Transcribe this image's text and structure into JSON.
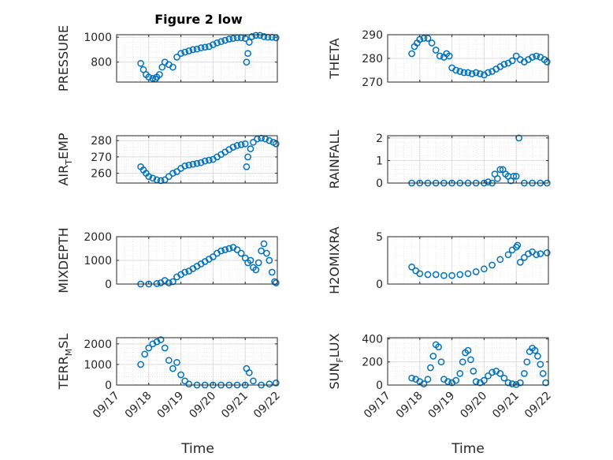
{
  "figure": {
    "title": "Figure 2 low",
    "xlabel": "Time",
    "x_ticks": [
      "09/17",
      "09/18",
      "09/19",
      "09/20",
      "09/21",
      "09/22"
    ],
    "marker_color": "#0072BD"
  },
  "chart_data": [
    {
      "type": "scatter",
      "ylabel": "PRESSURE",
      "ylim": [
        640,
        1020
      ],
      "yticks": [
        800,
        1000
      ],
      "grid": true,
      "x": [
        "09/17 18:00",
        "09/17 20:00",
        "09/17 22:00",
        "09/18 00:00",
        "09/18 03:00",
        "09/18 05:00",
        "09/18 06:00",
        "09/18 08:00",
        "09/18 10:00",
        "09/18 12:00",
        "09/18 15:00",
        "09/18 18:00",
        "09/18 21:00",
        "09/19 00:00",
        "09/19 03:00",
        "09/19 06:00",
        "09/19 09:00",
        "09/19 12:00",
        "09/19 15:00",
        "09/19 18:00",
        "09/19 21:00",
        "09/20 00:00",
        "09/20 03:00",
        "09/20 06:00",
        "09/20 09:00",
        "09/20 12:00",
        "09/20 15:00",
        "09/20 18:00",
        "09/20 21:00",
        "09/21 00:00",
        "09/21 01:00",
        "09/21 02:00",
        "09/21 03:00",
        "09/21 05:00",
        "09/21 08:00",
        "09/21 11:00",
        "09/21 14:00",
        "09/21 17:00",
        "09/21 20:00",
        "09/21 23:00"
      ],
      "values": [
        790,
        740,
        700,
        680,
        670,
        665,
        680,
        700,
        760,
        800,
        780,
        760,
        840,
        870,
        880,
        890,
        900,
        905,
        915,
        920,
        925,
        940,
        955,
        965,
        975,
        985,
        990,
        995,
        995,
        990,
        800,
        870,
        960,
        1005,
        1015,
        1015,
        1005,
        1000,
        1000,
        995
      ]
    },
    {
      "type": "scatter",
      "ylabel": "THETA",
      "ylim": [
        270,
        290
      ],
      "yticks": [
        270,
        280,
        290
      ],
      "grid": true,
      "x": [
        "09/17 18:00",
        "09/17 20:00",
        "09/17 22:00",
        "09/18 00:00",
        "09/18 03:00",
        "09/18 06:00",
        "09/18 09:00",
        "09/18 12:00",
        "09/18 15:00",
        "09/18 18:00",
        "09/18 20:00",
        "09/18 22:00",
        "09/19 00:00",
        "09/19 03:00",
        "09/19 06:00",
        "09/19 09:00",
        "09/19 12:00",
        "09/19 15:00",
        "09/19 18:00",
        "09/19 21:00",
        "09/20 00:00",
        "09/20 03:00",
        "09/20 06:00",
        "09/20 09:00",
        "09/20 12:00",
        "09/20 15:00",
        "09/20 18:00",
        "09/20 21:00",
        "09/21 00:00",
        "09/21 03:00",
        "09/21 06:00",
        "09/21 09:00",
        "09/21 12:00",
        "09/21 15:00",
        "09/21 18:00",
        "09/21 21:00",
        "09/21 23:00"
      ],
      "values": [
        282,
        285,
        286.5,
        288,
        288.5,
        288.5,
        286.5,
        283.5,
        281,
        280.5,
        282,
        281,
        276,
        275,
        274.5,
        274,
        274,
        273.5,
        274,
        273.5,
        273,
        274,
        274.5,
        275.5,
        276.5,
        277.5,
        278,
        279,
        281,
        279.5,
        278.5,
        279.5,
        280.5,
        281,
        280.5,
        279.5,
        278.5
      ]
    },
    {
      "type": "scatter",
      "ylabel": "AIR_TEMP",
      "ylim": [
        254,
        283
      ],
      "yticks": [
        260,
        270,
        280
      ],
      "grid": true,
      "x": [
        "09/17 18:00",
        "09/17 20:00",
        "09/17 22:00",
        "09/18 00:00",
        "09/18 03:00",
        "09/18 06:00",
        "09/18 09:00",
        "09/18 12:00",
        "09/18 15:00",
        "09/18 18:00",
        "09/18 21:00",
        "09/19 00:00",
        "09/19 03:00",
        "09/19 06:00",
        "09/19 09:00",
        "09/19 12:00",
        "09/19 15:00",
        "09/19 18:00",
        "09/19 21:00",
        "09/20 00:00",
        "09/20 03:00",
        "09/20 06:00",
        "09/20 09:00",
        "09/20 12:00",
        "09/20 15:00",
        "09/20 18:00",
        "09/20 21:00",
        "09/21 00:00",
        "09/21 01:00",
        "09/21 02:00",
        "09/21 04:00",
        "09/21 06:00",
        "09/21 09:00",
        "09/21 12:00",
        "09/21 15:00",
        "09/21 18:00",
        "09/21 21:00",
        "09/21 23:00"
      ],
      "values": [
        264,
        262,
        260,
        258,
        257,
        256,
        255.5,
        256,
        258,
        260,
        261,
        263,
        264.5,
        265,
        265.5,
        266,
        266.5,
        267.5,
        268,
        268.5,
        270,
        271.5,
        273,
        274.5,
        276,
        277,
        277.5,
        278,
        264,
        270,
        275,
        279,
        281,
        281.5,
        281,
        280,
        279,
        278
      ]
    },
    {
      "type": "scatter",
      "ylabel": "RAINFALL",
      "ylim": [
        0,
        2.1
      ],
      "yticks": [
        0,
        1,
        2
      ],
      "grid": true,
      "x": [
        "09/17 18:00",
        "09/18 00:00",
        "09/18 06:00",
        "09/18 12:00",
        "09/18 18:00",
        "09/19 00:00",
        "09/19 06:00",
        "09/19 12:00",
        "09/19 18:00",
        "09/20 00:00",
        "09/20 03:00",
        "09/20 06:00",
        "09/20 08:00",
        "09/20 10:00",
        "09/20 12:00",
        "09/20 14:00",
        "09/20 16:00",
        "09/20 18:00",
        "09/20 20:00",
        "09/20 22:00",
        "09/21 00:00",
        "09/21 02:00",
        "09/21 06:00",
        "09/21 12:00",
        "09/21 18:00",
        "09/21 23:00"
      ],
      "values": [
        0,
        0,
        0,
        0,
        0,
        0,
        0,
        0,
        0,
        0,
        0.05,
        0,
        0.4,
        0.2,
        0.6,
        0.6,
        0.4,
        0.3,
        0.1,
        0.3,
        0.3,
        2.0,
        0,
        0,
        0,
        0
      ]
    },
    {
      "type": "scatter",
      "ylabel": "MIXDEPTH",
      "ylim": [
        0,
        2000
      ],
      "yticks": [
        0,
        1000,
        2000
      ],
      "grid": true,
      "x": [
        "09/17 18:00",
        "09/18 00:00",
        "09/18 06:00",
        "09/18 09:00",
        "09/18 12:00",
        "09/18 15:00",
        "09/18 18:00",
        "09/18 21:00",
        "09/19 00:00",
        "09/19 03:00",
        "09/19 06:00",
        "09/19 09:00",
        "09/19 12:00",
        "09/19 15:00",
        "09/19 18:00",
        "09/19 21:00",
        "09/20 00:00",
        "09/20 03:00",
        "09/20 06:00",
        "09/20 09:00",
        "09/20 12:00",
        "09/20 15:00",
        "09/20 18:00",
        "09/20 21:00",
        "09/21 00:00",
        "09/21 02:00",
        "09/21 04:00",
        "09/21 06:00",
        "09/21 08:00",
        "09/21 10:00",
        "09/21 12:00",
        "09/21 14:00",
        "09/21 16:00",
        "09/21 18:00",
        "09/21 20:00",
        "09/21 22:00",
        "09/21 23:00"
      ],
      "values": [
        0,
        0,
        20,
        50,
        150,
        50,
        100,
        300,
        400,
        500,
        550,
        650,
        750,
        850,
        950,
        1050,
        1150,
        1300,
        1400,
        1450,
        1500,
        1550,
        1450,
        1300,
        1100,
        900,
        1000,
        700,
        600,
        900,
        1400,
        1700,
        1300,
        1000,
        500,
        100,
        50
      ]
    },
    {
      "type": "scatter",
      "ylabel": "H2OMIXRA",
      "ylim": [
        0,
        5
      ],
      "yticks": [
        0,
        5
      ],
      "grid": true,
      "x": [
        "09/17 18:00",
        "09/17 21:00",
        "09/18 00:00",
        "09/18 06:00",
        "09/18 12:00",
        "09/18 18:00",
        "09/19 00:00",
        "09/19 06:00",
        "09/19 12:00",
        "09/19 18:00",
        "09/20 00:00",
        "09/20 06:00",
        "09/20 12:00",
        "09/20 18:00",
        "09/20 21:00",
        "09/21 00:00",
        "09/21 01:00",
        "09/21 03:00",
        "09/21 06:00",
        "09/21 09:00",
        "09/21 12:00",
        "09/21 15:00",
        "09/21 18:00",
        "09/21 23:00"
      ],
      "values": [
        1.8,
        1.4,
        1.1,
        1.0,
        1.0,
        0.9,
        0.9,
        1.0,
        1.1,
        1.3,
        1.6,
        2.0,
        2.6,
        3.1,
        3.6,
        3.9,
        4.1,
        2.3,
        2.8,
        3.2,
        3.4,
        3.1,
        3.2,
        3.3
      ]
    },
    {
      "type": "scatter",
      "ylabel": "TERR_MSL",
      "ylim": [
        0,
        2300
      ],
      "yticks": [
        0,
        1000,
        2000
      ],
      "grid": true,
      "x": [
        "09/17 18:00",
        "09/17 21:00",
        "09/18 00:00",
        "09/18 03:00",
        "09/18 06:00",
        "09/18 09:00",
        "09/18 12:00",
        "09/18 15:00",
        "09/18 18:00",
        "09/18 21:00",
        "09/19 00:00",
        "09/19 03:00",
        "09/19 06:00",
        "09/19 12:00",
        "09/19 18:00",
        "09/20 00:00",
        "09/20 06:00",
        "09/20 12:00",
        "09/20 18:00",
        "09/21 00:00",
        "09/21 01:00",
        "09/21 03:00",
        "09/21 06:00",
        "09/21 12:00",
        "09/21 18:00",
        "09/21 23:00"
      ],
      "values": [
        1000,
        1500,
        1800,
        2000,
        2100,
        2200,
        1800,
        1200,
        800,
        1100,
        500,
        200,
        50,
        0,
        0,
        0,
        0,
        0,
        0,
        0,
        800,
        600,
        200,
        0,
        50,
        100
      ]
    },
    {
      "type": "scatter",
      "ylabel": "SUN_FLUX",
      "ylim": [
        0,
        410
      ],
      "yticks": [
        0,
        200,
        400
      ],
      "grid": true,
      "x": [
        "09/17 18:00",
        "09/17 21:00",
        "09/18 00:00",
        "09/18 03:00",
        "09/18 06:00",
        "09/18 08:00",
        "09/18 10:00",
        "09/18 12:00",
        "09/18 14:00",
        "09/18 16:00",
        "09/18 18:00",
        "09/18 21:00",
        "09/19 00:00",
        "09/19 03:00",
        "09/19 06:00",
        "09/19 08:00",
        "09/19 10:00",
        "09/19 12:00",
        "09/19 14:00",
        "09/19 16:00",
        "09/19 18:00",
        "09/19 21:00",
        "09/20 00:00",
        "09/20 03:00",
        "09/20 06:00",
        "09/20 09:00",
        "09/20 12:00",
        "09/20 15:00",
        "09/20 18:00",
        "09/20 21:00",
        "09/21 00:00",
        "09/21 03:00",
        "09/21 06:00",
        "09/21 08:00",
        "09/21 10:00",
        "09/21 12:00",
        "09/21 14:00",
        "09/21 16:00",
        "09/21 18:00",
        "09/21 20:00",
        "09/21 22:00"
      ],
      "values": [
        60,
        50,
        30,
        10,
        50,
        150,
        250,
        350,
        330,
        200,
        50,
        30,
        20,
        40,
        100,
        200,
        280,
        300,
        220,
        120,
        30,
        20,
        40,
        80,
        110,
        120,
        100,
        60,
        20,
        10,
        5,
        20,
        100,
        200,
        290,
        320,
        300,
        250,
        180,
        100,
        20
      ]
    }
  ]
}
